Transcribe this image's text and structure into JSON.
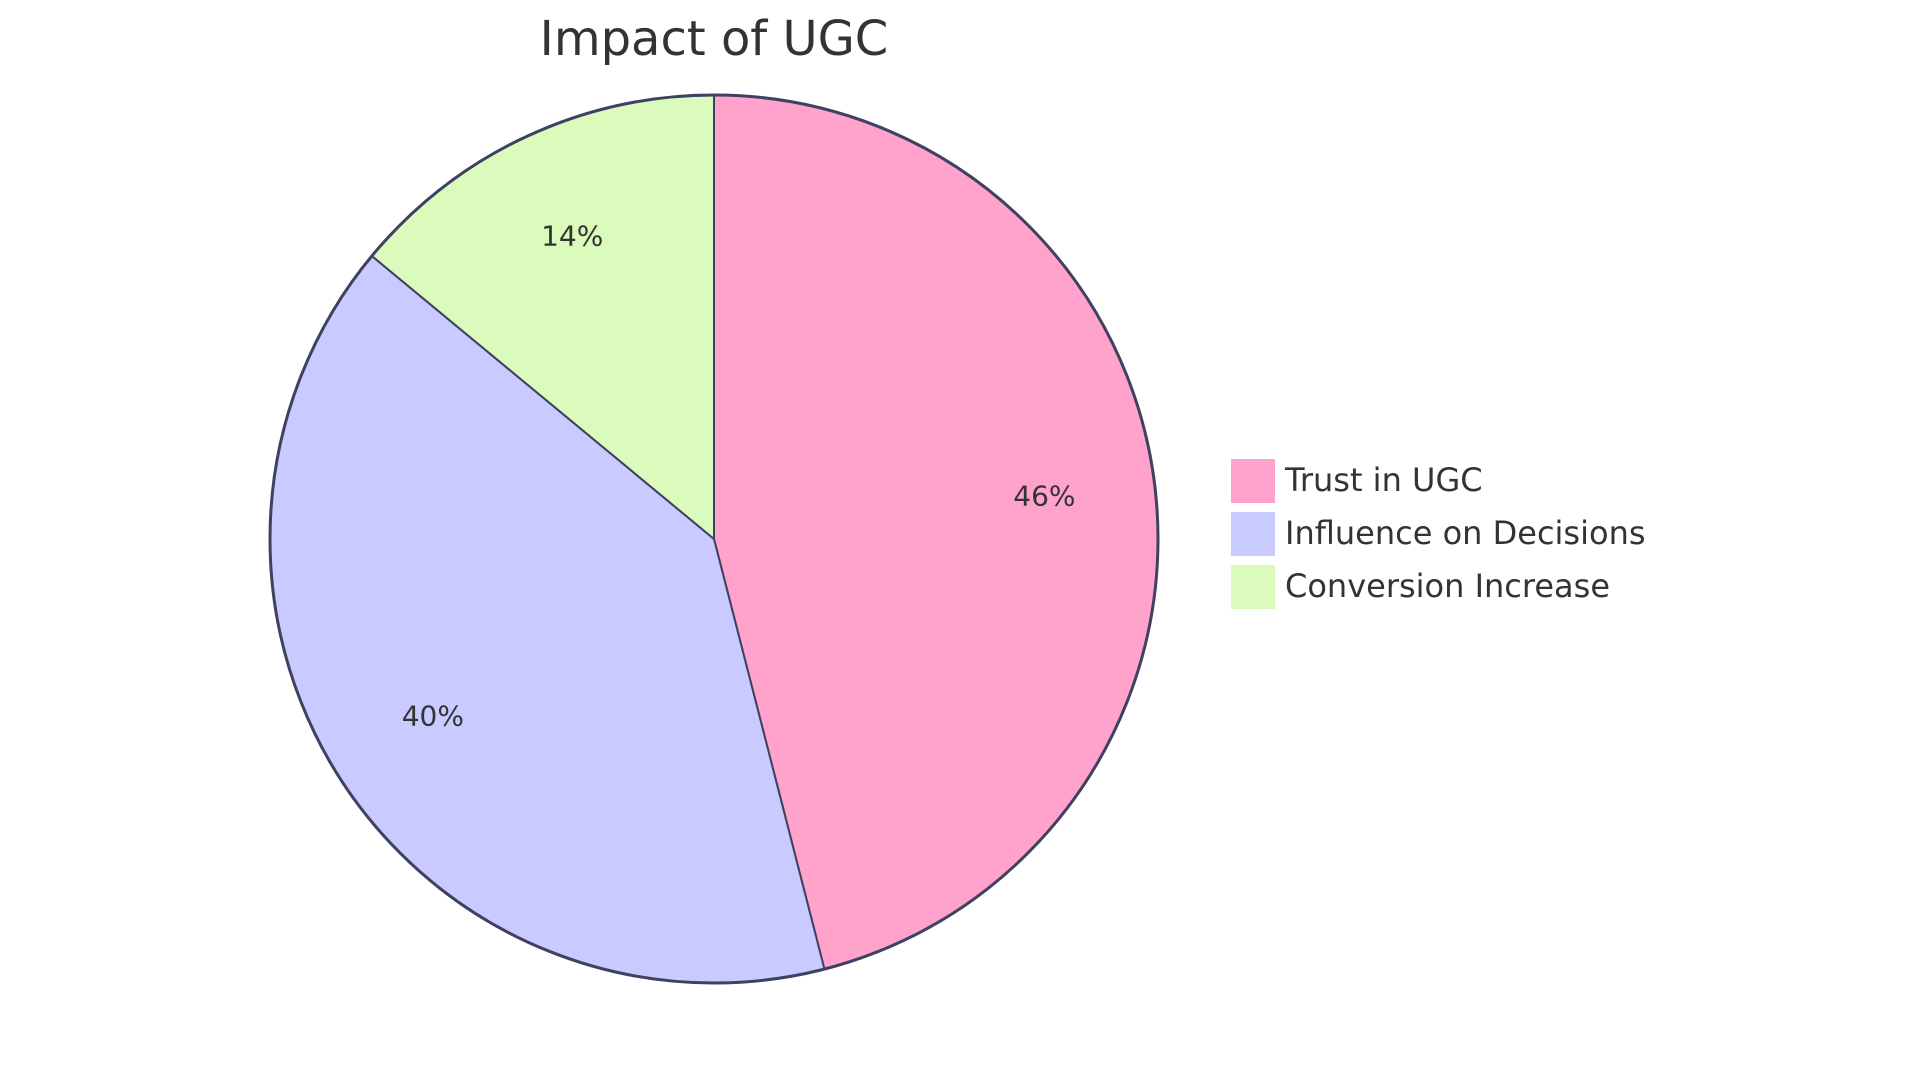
{
  "chart_data": {
    "type": "pie",
    "title": "Impact of UGC",
    "categories": [
      "Trust in UGC",
      "Influence on Decisions",
      "Conversion Increase"
    ],
    "values": [
      46,
      40,
      14
    ],
    "value_labels": [
      "46%",
      "40%",
      "14%"
    ],
    "colors": [
      "#ffa3cc",
      "#c9caff",
      "#dafbbc"
    ],
    "legend": "right"
  }
}
